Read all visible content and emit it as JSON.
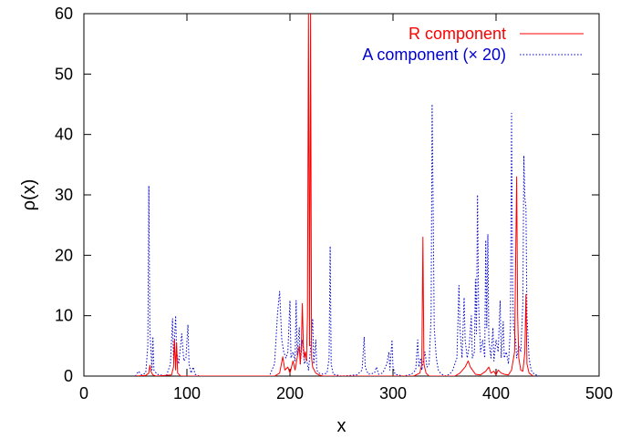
{
  "chart_data": {
    "type": "line",
    "title": "",
    "xlabel": "x",
    "ylabel": "ρ(x)",
    "xlim": [
      0,
      500
    ],
    "ylim": [
      0,
      60
    ],
    "xticks": [
      0,
      100,
      200,
      300,
      400,
      500
    ],
    "yticks": [
      0,
      10,
      20,
      30,
      40,
      50,
      60
    ],
    "grid": false,
    "legend_position": "top-right",
    "series": [
      {
        "name": "R component",
        "color": "#ff0000",
        "style": "solid",
        "points": [
          [
            50,
            0
          ],
          [
            60,
            0.1
          ],
          [
            63,
            0.5
          ],
          [
            64,
            1.8
          ],
          [
            65,
            0.8
          ],
          [
            67,
            0.2
          ],
          [
            70,
            0
          ],
          [
            85,
            0.2
          ],
          [
            87,
            1.5
          ],
          [
            88,
            6.0
          ],
          [
            89,
            1.0
          ],
          [
            90,
            5.5
          ],
          [
            91,
            0.5
          ],
          [
            94,
            0
          ],
          [
            185,
            0
          ],
          [
            190,
            0.5
          ],
          [
            193,
            3.2
          ],
          [
            195,
            1.0
          ],
          [
            198,
            1.5
          ],
          [
            200,
            0.5
          ],
          [
            203,
            2.5
          ],
          [
            205,
            1.0
          ],
          [
            207,
            3.0
          ],
          [
            209,
            5.0
          ],
          [
            210,
            2.0
          ],
          [
            211,
            4.5
          ],
          [
            212,
            12.0
          ],
          [
            213,
            5.0
          ],
          [
            214,
            3.0
          ],
          [
            215,
            4.0
          ],
          [
            216,
            2.5
          ],
          [
            217,
            10.0
          ],
          [
            218,
            60
          ],
          [
            219,
            5.0
          ],
          [
            220,
            60
          ],
          [
            221,
            3.0
          ],
          [
            222,
            1.5
          ],
          [
            225,
            0.5
          ],
          [
            228,
            0.2
          ],
          [
            232,
            0
          ],
          [
            320,
            0
          ],
          [
            326,
            0.5
          ],
          [
            328,
            2.0
          ],
          [
            329,
            23.0
          ],
          [
            330,
            2.0
          ],
          [
            332,
            0.5
          ],
          [
            335,
            0
          ],
          [
            360,
            0
          ],
          [
            365,
            0.5
          ],
          [
            370,
            1.5
          ],
          [
            373,
            2.5
          ],
          [
            375,
            1.5
          ],
          [
            378,
            0.8
          ],
          [
            380,
            0.3
          ],
          [
            385,
            0.2
          ],
          [
            390,
            0.8
          ],
          [
            393,
            1.5
          ],
          [
            395,
            0.5
          ],
          [
            398,
            0.8
          ],
          [
            400,
            0.2
          ],
          [
            402,
            1.0
          ],
          [
            405,
            0.5
          ],
          [
            408,
            0.3
          ],
          [
            412,
            0.2
          ],
          [
            415,
            1.0
          ],
          [
            418,
            4.0
          ],
          [
            420,
            33.0
          ],
          [
            421,
            10.0
          ],
          [
            422,
            3.0
          ],
          [
            424,
            1.0
          ],
          [
            426,
            0.8
          ],
          [
            428,
            4.0
          ],
          [
            429,
            13.5
          ],
          [
            430,
            2.0
          ],
          [
            432,
            0.5
          ],
          [
            436,
            0
          ]
        ]
      },
      {
        "name": "A component (× 20)",
        "color": "#0000cc",
        "style": "dotted",
        "points": [
          [
            50,
            0
          ],
          [
            53,
            0.8
          ],
          [
            56,
            0.2
          ],
          [
            60,
            0.5
          ],
          [
            62,
            5.0
          ],
          [
            63,
            31.5
          ],
          [
            64,
            8.0
          ],
          [
            66,
            1.0
          ],
          [
            67,
            6.5
          ],
          [
            68,
            1.0
          ],
          [
            71,
            0.3
          ],
          [
            80,
            0
          ],
          [
            84,
            2.0
          ],
          [
            86,
            9.5
          ],
          [
            87,
            3.0
          ],
          [
            89,
            10.0
          ],
          [
            90,
            4.0
          ],
          [
            92,
            2.0
          ],
          [
            95,
            7.0
          ],
          [
            97,
            2.5
          ],
          [
            99,
            3.0
          ],
          [
            101,
            8.5
          ],
          [
            102,
            2.0
          ],
          [
            104,
            0.5
          ],
          [
            106,
            1.5
          ],
          [
            108,
            0.3
          ],
          [
            112,
            0
          ],
          [
            180,
            0
          ],
          [
            185,
            2.0
          ],
          [
            188,
            10.5
          ],
          [
            190,
            14.0
          ],
          [
            192,
            6.0
          ],
          [
            194,
            4.0
          ],
          [
            196,
            3.0
          ],
          [
            198,
            4.0
          ],
          [
            200,
            12.5
          ],
          [
            201,
            3.0
          ],
          [
            203,
            4.0
          ],
          [
            205,
            2.5
          ],
          [
            206,
            12.5
          ],
          [
            207,
            3.5
          ],
          [
            209,
            8.0
          ],
          [
            210,
            2.0
          ],
          [
            212,
            6.0
          ],
          [
            214,
            2.0
          ],
          [
            216,
            3.0
          ],
          [
            218,
            1.0
          ],
          [
            220,
            4.5
          ],
          [
            222,
            9.5
          ],
          [
            223,
            2.0
          ],
          [
            225,
            6.0
          ],
          [
            226,
            1.0
          ],
          [
            228,
            0.5
          ],
          [
            232,
            0.3
          ],
          [
            236,
            0.5
          ],
          [
            238,
            3.0
          ],
          [
            239,
            21.5
          ],
          [
            240,
            2.0
          ],
          [
            242,
            0.3
          ],
          [
            250,
            0
          ],
          [
            265,
            0.2
          ],
          [
            270,
            1.0
          ],
          [
            272,
            6.5
          ],
          [
            273,
            1.5
          ],
          [
            276,
            0.3
          ],
          [
            282,
            0.5
          ],
          [
            284,
            1.5
          ],
          [
            286,
            0.3
          ],
          [
            290,
            0.5
          ],
          [
            294,
            2.0
          ],
          [
            296,
            4.0
          ],
          [
            297,
            1.0
          ],
          [
            299,
            6.0
          ],
          [
            300,
            1.5
          ],
          [
            302,
            0.3
          ],
          [
            310,
            0
          ],
          [
            318,
            0.3
          ],
          [
            322,
            1.0
          ],
          [
            324,
            6.0
          ],
          [
            325,
            1.5
          ],
          [
            327,
            3.0
          ],
          [
            328,
            1.0
          ],
          [
            331,
            4.0
          ],
          [
            333,
            1.5
          ],
          [
            335,
            2.0
          ],
          [
            337,
            10.0
          ],
          [
            338,
            45.0
          ],
          [
            339,
            27.0
          ],
          [
            340,
            8.0
          ],
          [
            342,
            3.0
          ],
          [
            344,
            1.0
          ],
          [
            346,
            0.5
          ],
          [
            350,
            0
          ],
          [
            355,
            0.3
          ],
          [
            358,
            1.0
          ],
          [
            362,
            3.0
          ],
          [
            364,
            15.0
          ],
          [
            365,
            8.0
          ],
          [
            367,
            3.0
          ],
          [
            369,
            13.0
          ],
          [
            370,
            6.0
          ],
          [
            372,
            3.0
          ],
          [
            374,
            5.0
          ],
          [
            376,
            10.0
          ],
          [
            377,
            3.0
          ],
          [
            379,
            4.0
          ],
          [
            380,
            16.0
          ],
          [
            381,
            7.0
          ],
          [
            382,
            30.0
          ],
          [
            383,
            12.0
          ],
          [
            385,
            4.0
          ],
          [
            387,
            6.0
          ],
          [
            389,
            3.0
          ],
          [
            390,
            22.5
          ],
          [
            391,
            8.0
          ],
          [
            392,
            23.5
          ],
          [
            393,
            6.0
          ],
          [
            395,
            3.0
          ],
          [
            397,
            8.0
          ],
          [
            398,
            2.5
          ],
          [
            400,
            6.0
          ],
          [
            402,
            4.0
          ],
          [
            404,
            12.5
          ],
          [
            405,
            3.0
          ],
          [
            407,
            9.0
          ],
          [
            408,
            3.0
          ],
          [
            410,
            4.0
          ],
          [
            412,
            2.0
          ],
          [
            414,
            8.0
          ],
          [
            415,
            43.5
          ],
          [
            416,
            15.0
          ],
          [
            417,
            8.0
          ],
          [
            419,
            6.0
          ],
          [
            420,
            3.0
          ],
          [
            422,
            5.0
          ],
          [
            424,
            4.0
          ],
          [
            426,
            12.0
          ],
          [
            427,
            36.5
          ],
          [
            428,
            29.5
          ],
          [
            429,
            28.0
          ],
          [
            430,
            10.0
          ],
          [
            432,
            3.0
          ],
          [
            434,
            1.0
          ],
          [
            437,
            0.3
          ],
          [
            442,
            0
          ]
        ]
      }
    ]
  }
}
